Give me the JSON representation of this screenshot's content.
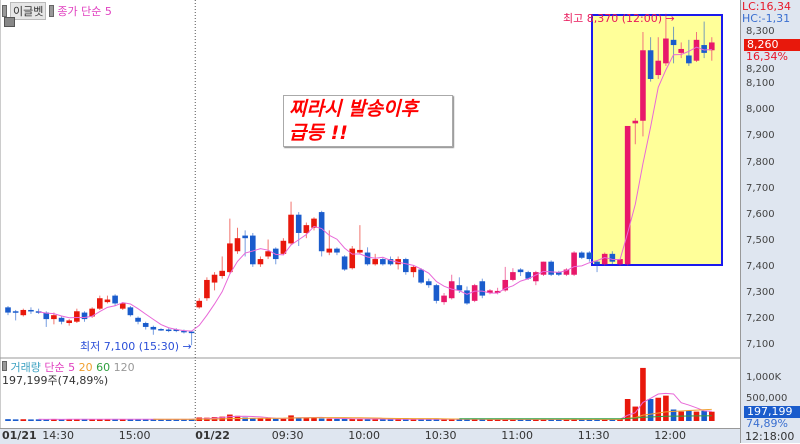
{
  "header": {
    "stock_name": "이글벳",
    "ma_label": "종가 단순 5"
  },
  "annotation": {
    "line1": "찌라시 발송이후",
    "line2": "급등 !!"
  },
  "high_label": "최고 8,370 (12:00) →",
  "low_label": "최저 7,100 (15:30) →",
  "right_panel": {
    "lc": "LC:16,34",
    "hc": "HC:-1,31",
    "last_price": "8,260",
    "change_pct": "16,34%",
    "last_volume": "197,199",
    "volume_pct": "74,89%",
    "clock": "12:18:00"
  },
  "volume_legend": {
    "title": "거래량",
    "ma5": "단순 5",
    "ma20": "20",
    "ma60": "60",
    "ma120": "120",
    "value": "197,199주(74,89%)"
  },
  "colors": {
    "up": "#e8180c",
    "down": "#1a5ccc",
    "up_highlight": "#e8186a",
    "ma5": "#e868d8",
    "ma20": "#f0a030",
    "ma60": "#30a040",
    "highlight_fill": "#ffff99",
    "highlight_border": "#1a1aee"
  },
  "chart_data": {
    "type": "candlestick",
    "interval": "3-minute",
    "y_ticks": [
      "7,100",
      "7,200",
      "7,300",
      "7,400",
      "7,500",
      "7,600",
      "7,700",
      "7,800",
      "7,900",
      "8,000",
      "8,100",
      "8,200",
      "8,300"
    ],
    "ylim": [
      7060,
      8400
    ],
    "volume_ticks": [
      "500,000",
      "1,000K"
    ],
    "volume_lim": [
      0,
      1300000
    ],
    "day_break_index": 25,
    "highlight_range": [
      54,
      92
    ],
    "x_ticks": [
      {
        "label": "01/21",
        "index": -1,
        "bold": true
      },
      {
        "label": "14:30",
        "index": 5
      },
      {
        "label": "15:00",
        "index": 15
      },
      {
        "label": "01/22",
        "index": 25,
        "bold": true
      },
      {
        "label": "09:30",
        "index": 35
      },
      {
        "label": "10:00",
        "index": 45
      },
      {
        "label": "10:30",
        "index": 55
      },
      {
        "label": "11:00",
        "index": 65
      },
      {
        "label": "11:30",
        "index": 75
      },
      {
        "label": "12:00",
        "index": 85
      }
    ],
    "ohlc": [
      [
        7245,
        7250,
        7215,
        7225
      ],
      [
        7230,
        7235,
        7195,
        7225
      ],
      [
        7215,
        7240,
        7210,
        7235
      ],
      [
        7235,
        7245,
        7220,
        7230
      ],
      [
        7230,
        7240,
        7220,
        7225
      ],
      [
        7225,
        7230,
        7170,
        7200
      ],
      [
        7200,
        7225,
        7180,
        7215
      ],
      [
        7205,
        7210,
        7180,
        7190
      ],
      [
        7185,
        7200,
        7175,
        7195
      ],
      [
        7190,
        7240,
        7185,
        7230
      ],
      [
        7225,
        7230,
        7190,
        7200
      ],
      [
        7210,
        7245,
        7205,
        7240
      ],
      [
        7240,
        7290,
        7235,
        7280
      ],
      [
        7265,
        7290,
        7260,
        7275
      ],
      [
        7290,
        7295,
        7250,
        7260
      ],
      [
        7240,
        7265,
        7235,
        7260
      ],
      [
        7245,
        7250,
        7210,
        7215
      ],
      [
        7205,
        7210,
        7180,
        7190
      ],
      [
        7185,
        7190,
        7160,
        7170
      ],
      [
        7170,
        7175,
        7140,
        7160
      ],
      [
        7162,
        7165,
        7155,
        7160
      ],
      [
        7160,
        7165,
        7150,
        7155
      ],
      [
        7160,
        7165,
        7150,
        7155
      ],
      [
        7155,
        7160,
        7145,
        7150
      ],
      [
        7152,
        7155,
        7100,
        7150
      ],
      [
        7245,
        7280,
        7240,
        7270
      ],
      [
        7280,
        7360,
        7270,
        7350
      ],
      [
        7340,
        7380,
        7310,
        7370
      ],
      [
        7365,
        7440,
        7355,
        7385
      ],
      [
        7380,
        7585,
        7375,
        7490
      ],
      [
        7460,
        7550,
        7450,
        7510
      ],
      [
        7520,
        7540,
        7440,
        7510
      ],
      [
        7520,
        7530,
        7400,
        7410
      ],
      [
        7410,
        7440,
        7400,
        7430
      ],
      [
        7440,
        7505,
        7430,
        7460
      ],
      [
        7470,
        7475,
        7410,
        7430
      ],
      [
        7450,
        7510,
        7445,
        7500
      ],
      [
        7490,
        7650,
        7485,
        7600
      ],
      [
        7600,
        7610,
        7480,
        7530
      ],
      [
        7530,
        7570,
        7510,
        7560
      ],
      [
        7550,
        7590,
        7540,
        7585
      ],
      [
        7610,
        7615,
        7440,
        7460
      ],
      [
        7455,
        7540,
        7445,
        7470
      ],
      [
        7470,
        7475,
        7445,
        7455
      ],
      [
        7440,
        7445,
        7385,
        7390
      ],
      [
        7395,
        7480,
        7390,
        7470
      ],
      [
        7455,
        7560,
        7450,
        7465
      ],
      [
        7455,
        7475,
        7405,
        7410
      ],
      [
        7410,
        7450,
        7405,
        7430
      ],
      [
        7430,
        7435,
        7405,
        7410
      ],
      [
        7430,
        7440,
        7405,
        7410
      ],
      [
        7410,
        7440,
        7390,
        7430
      ],
      [
        7430,
        7435,
        7370,
        7380
      ],
      [
        7380,
        7405,
        7360,
        7400
      ],
      [
        7390,
        7395,
        7335,
        7340
      ],
      [
        7345,
        7355,
        7320,
        7330
      ],
      [
        7330,
        7335,
        7260,
        7270
      ],
      [
        7265,
        7300,
        7255,
        7290
      ],
      [
        7280,
        7370,
        7275,
        7345
      ],
      [
        7330,
        7360,
        7300,
        7310
      ],
      [
        7310,
        7325,
        7255,
        7260
      ],
      [
        7270,
        7335,
        7265,
        7330
      ],
      [
        7345,
        7355,
        7280,
        7290
      ],
      [
        7300,
        7315,
        7295,
        7310
      ],
      [
        7300,
        7320,
        7295,
        7308
      ],
      [
        7310,
        7400,
        7305,
        7350
      ],
      [
        7350,
        7395,
        7345,
        7380
      ],
      [
        7390,
        7395,
        7365,
        7380
      ],
      [
        7380,
        7385,
        7350,
        7355
      ],
      [
        7345,
        7385,
        7330,
        7380
      ],
      [
        7370,
        7420,
        7365,
        7420
      ],
      [
        7420,
        7425,
        7365,
        7370
      ],
      [
        7380,
        7385,
        7365,
        7370
      ],
      [
        7370,
        7395,
        7365,
        7390
      ],
      [
        7370,
        7460,
        7365,
        7455
      ],
      [
        7455,
        7460,
        7430,
        7435
      ],
      [
        7455,
        7460,
        7420,
        7430
      ],
      [
        7420,
        7425,
        7380,
        7410
      ],
      [
        7410,
        7455,
        7405,
        7450
      ],
      [
        7450,
        7460,
        7410,
        7420
      ],
      [
        7410,
        7430,
        7405,
        7430
      ],
      [
        7410,
        7940,
        7405,
        7940
      ],
      [
        7950,
        7970,
        7870,
        7960
      ],
      [
        7960,
        8300,
        7900,
        8230
      ],
      [
        8230,
        8280,
        8110,
        8120
      ],
      [
        8135,
        8280,
        8120,
        8190
      ],
      [
        8180,
        8370,
        8170,
        8275
      ],
      [
        8270,
        8320,
        8180,
        8250
      ],
      [
        8220,
        8260,
        8200,
        8235
      ],
      [
        8210,
        8270,
        8170,
        8180
      ],
      [
        8190,
        8300,
        8185,
        8270
      ],
      [
        8250,
        8340,
        8200,
        8220
      ],
      [
        8230,
        8280,
        8190,
        8260
      ]
    ],
    "volume": [
      20000,
      15000,
      18000,
      14000,
      15000,
      16000,
      20000,
      15000,
      17000,
      16000,
      18000,
      20000,
      22000,
      18000,
      16000,
      20000,
      17000,
      15000,
      18000,
      16000,
      14000,
      15000,
      16000,
      14000,
      25000,
      60000,
      55000,
      70000,
      80000,
      130000,
      100000,
      60000,
      45000,
      40000,
      35000,
      30000,
      30000,
      110000,
      60000,
      50000,
      55000,
      35000,
      30000,
      28000,
      30000,
      25000,
      28000,
      22000,
      20000,
      18000,
      20000,
      18000,
      17000,
      20000,
      16000,
      18000,
      17000,
      19000,
      16000,
      15000,
      18000,
      17000,
      16000,
      15000,
      15000,
      16000,
      17000,
      15000,
      16000,
      15000,
      17000,
      16000,
      15000,
      18000,
      17000,
      16000,
      15000,
      17000,
      16000,
      18000,
      15000,
      500000,
      320000,
      1240000,
      500000,
      530000,
      580000,
      250000,
      200000,
      220000,
      200000,
      220000,
      197199
    ]
  }
}
